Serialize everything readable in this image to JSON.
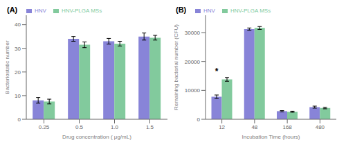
{
  "chart_data": [
    {
      "type": "bar",
      "title": "(A)",
      "x_label": "Drug concentration ( μg/mL)",
      "y_label": "Bacteriostatic number",
      "categories": [
        "0.25",
        "0.5",
        "1.0",
        "1.5"
      ],
      "series": [
        {
          "name": "HNV",
          "color": "#8884d8",
          "values": [
            8.0,
            34.0,
            33.0,
            35.0
          ],
          "errors": [
            1.2,
            1.0,
            1.2,
            1.5
          ]
        },
        {
          "name": "HNV-PLGA MSs",
          "color": "#82ca9d",
          "values": [
            7.5,
            31.5,
            32.0,
            34.5
          ],
          "errors": [
            1.0,
            1.2,
            1.0,
            1.0
          ]
        }
      ],
      "ylim": [
        0,
        44
      ],
      "yticks": [
        0,
        10,
        20,
        30,
        40
      ],
      "legend": "upper left",
      "grid": false
    },
    {
      "type": "bar",
      "title": "(B)",
      "x_label": "Incubation Time (hours)",
      "y_label": "Remaining bacterial number (CFU)",
      "categories": [
        "12",
        "48",
        "168",
        "480"
      ],
      "series": [
        {
          "name": "HNV",
          "color": "#8884d8",
          "values": [
            7800,
            31200,
            2800,
            4200
          ],
          "errors": [
            600,
            400,
            200,
            350
          ]
        },
        {
          "name": "HNV-PLGA MSs",
          "color": "#82ca9d",
          "values": [
            13800,
            31600,
            2600,
            3900
          ],
          "errors": [
            650,
            500,
            180,
            280
          ]
        }
      ],
      "ylim": [
        0,
        36000
      ],
      "yticks": [
        0,
        10000,
        20000,
        30000
      ],
      "legend": "upper left",
      "grid": false,
      "annotations": [
        {
          "text": "*",
          "category": "12",
          "series": "HNV",
          "y": 15500
        }
      ]
    }
  ]
}
